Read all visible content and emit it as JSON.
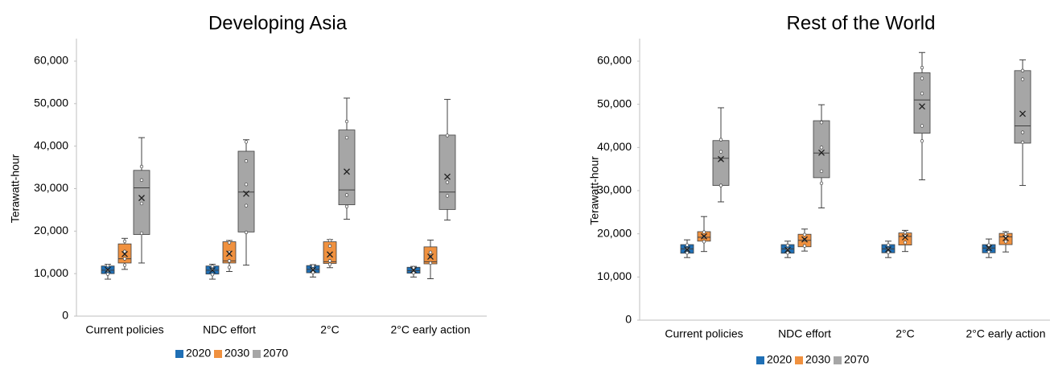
{
  "chart_data": [
    {
      "type": "box",
      "title": "Developing Asia",
      "y_label": "Terawatt-hour",
      "categories": [
        "Current policies",
        "NDC effort",
        "2°C",
        "2°C early action"
      ],
      "ylim": [
        0,
        60000
      ],
      "yticks": [
        0,
        {
          "value": 10000,
          "label": "10,000"
        },
        {
          "value": 20000,
          "label": "20,000"
        },
        {
          "value": 30000,
          "label": "30,000"
        },
        {
          "value": 40000,
          "label": "40,000"
        },
        {
          "value": 50000,
          "label": "50,000"
        },
        {
          "value": 60000,
          "label": "60,000"
        }
      ],
      "series": [
        {
          "name": "2020",
          "color": "#1f6fb5",
          "boxes": [
            {
              "min": 8700,
              "q1": 10000,
              "median": 10800,
              "q3": 11800,
              "max": 12200,
              "mean": 10900,
              "points": [
                9900,
                10800,
                11900
              ]
            },
            {
              "min": 8700,
              "q1": 9900,
              "median": 10800,
              "q3": 11800,
              "max": 12200,
              "mean": 10800,
              "points": [
                9800,
                10900,
                11700
              ]
            },
            {
              "min": 9200,
              "q1": 10200,
              "median": 11000,
              "q3": 11900,
              "max": 12100,
              "mean": 10900,
              "points": [
                10300,
                11000,
                11800
              ]
            },
            {
              "min": 9200,
              "q1": 10100,
              "median": 10700,
              "q3": 11500,
              "max": 11700,
              "mean": 10800,
              "points": [
                10200,
                10800,
                11400
              ]
            }
          ]
        },
        {
          "name": "2030",
          "color": "#f0913f",
          "boxes": [
            {
              "min": 11000,
              "q1": 12500,
              "median": 13500,
              "q3": 17000,
              "max": 18300,
              "mean": 14600,
              "points": [
                12000,
                13500,
                15200,
                17600
              ]
            },
            {
              "min": 10500,
              "q1": 12500,
              "median": 13000,
              "q3": 17500,
              "max": 17800,
              "mean": 14700,
              "points": [
                11500,
                13000,
                15000,
                17300
              ]
            },
            {
              "min": 11400,
              "q1": 12400,
              "median": 12800,
              "q3": 17500,
              "max": 18000,
              "mean": 14500,
              "points": [
                12200,
                13000,
                16500,
                17800
              ]
            },
            {
              "min": 8800,
              "q1": 12300,
              "median": 12800,
              "q3": 16300,
              "max": 17900,
              "mean": 14000,
              "points": [
                12500,
                14000,
                15000
              ]
            }
          ]
        },
        {
          "name": "2070",
          "color": "#a6a6a6",
          "boxes": [
            {
              "min": 12500,
              "q1": 19200,
              "median": 30200,
              "q3": 34300,
              "max": 42000,
              "mean": 27800,
              "points": [
                19500,
                26500,
                32000,
                35200
              ]
            },
            {
              "min": 12000,
              "q1": 19800,
              "median": 29200,
              "q3": 38800,
              "max": 41500,
              "mean": 28800,
              "points": [
                19700,
                26000,
                31000,
                36500,
                41000
              ]
            },
            {
              "min": 22800,
              "q1": 26200,
              "median": 29700,
              "q3": 43800,
              "max": 51300,
              "mean": 34000,
              "points": [
                25800,
                28500,
                42000,
                45800
              ]
            },
            {
              "min": 22600,
              "q1": 25100,
              "median": 29200,
              "q3": 42600,
              "max": 51000,
              "mean": 32800,
              "points": [
                28300,
                31500,
                42500
              ]
            }
          ]
        }
      ]
    },
    {
      "type": "box",
      "title": "Rest of the World",
      "y_label": "Terawatt-hour",
      "categories": [
        "Current policies",
        "NDC effort",
        "2°C",
        "2°C early action"
      ],
      "ylim": [
        0,
        60000
      ],
      "yticks": [
        0,
        {
          "value": 10000,
          "label": "10,000"
        },
        {
          "value": 20000,
          "label": "20,000"
        },
        {
          "value": 30000,
          "label": "30,000"
        },
        {
          "value": 40000,
          "label": "40,000"
        },
        {
          "value": 50000,
          "label": "50,000"
        },
        {
          "value": 60000,
          "label": "60,000"
        }
      ],
      "series": [
        {
          "name": "2020",
          "color": "#1f6fb5",
          "boxes": [
            {
              "min": 14500,
              "q1": 15500,
              "median": 16500,
              "q3": 17500,
              "max": 18600,
              "mean": 16400,
              "points": [
                15600,
                16500,
                17400
              ]
            },
            {
              "min": 14500,
              "q1": 15500,
              "median": 16500,
              "q3": 17500,
              "max": 18300,
              "mean": 16300,
              "points": [
                15600,
                16400,
                17300
              ]
            },
            {
              "min": 14500,
              "q1": 15600,
              "median": 16500,
              "q3": 17500,
              "max": 18300,
              "mean": 16400,
              "points": [
                15700,
                16500,
                17400
              ]
            },
            {
              "min": 14500,
              "q1": 15600,
              "median": 16700,
              "q3": 17500,
              "max": 18800,
              "mean": 16700,
              "points": [
                15800,
                16700,
                17400
              ]
            }
          ]
        },
        {
          "name": "2030",
          "color": "#f0913f",
          "boxes": [
            {
              "min": 15900,
              "q1": 18300,
              "median": 19200,
              "q3": 20500,
              "max": 24000,
              "mean": 19400,
              "points": [
                18200,
                19300,
                20400
              ]
            },
            {
              "min": 16000,
              "q1": 17000,
              "median": 18500,
              "q3": 19900,
              "max": 21100,
              "mean": 18700,
              "points": [
                17200,
                18600,
                19800
              ]
            },
            {
              "min": 15900,
              "q1": 17400,
              "median": 19400,
              "q3": 20200,
              "max": 20800,
              "mean": 19200,
              "points": [
                18000,
                19500,
                20300
              ]
            },
            {
              "min": 15800,
              "q1": 17500,
              "median": 19300,
              "q3": 20100,
              "max": 20500,
              "mean": 19000,
              "points": [
                18200,
                19300,
                20000
              ]
            }
          ]
        },
        {
          "name": "2070",
          "color": "#a6a6a6",
          "boxes": [
            {
              "min": 27400,
              "q1": 31200,
              "median": 37500,
              "q3": 41600,
              "max": 49200,
              "mean": 37300,
              "points": [
                31200,
                37300,
                39000,
                41800
              ]
            },
            {
              "min": 26000,
              "q1": 33000,
              "median": 38700,
              "q3": 46200,
              "max": 49900,
              "mean": 38800,
              "points": [
                31700,
                34500,
                40000,
                45800
              ]
            },
            {
              "min": 32500,
              "q1": 43300,
              "median": 51000,
              "q3": 57300,
              "max": 62000,
              "mean": 49500,
              "points": [
                41500,
                45000,
                52500,
                56000,
                58500
              ]
            },
            {
              "min": 31200,
              "q1": 41000,
              "median": 45000,
              "q3": 57800,
              "max": 60300,
              "mean": 47800,
              "points": [
                41200,
                43500,
                55800,
                57800
              ]
            }
          ]
        }
      ]
    }
  ]
}
